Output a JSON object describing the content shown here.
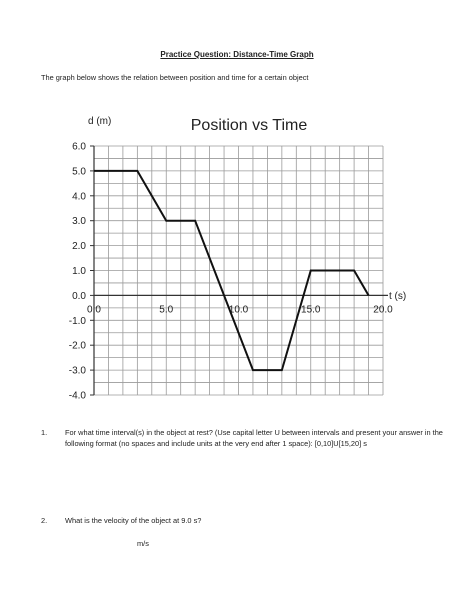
{
  "document": {
    "title": "Practice Question: Distance-Time Graph",
    "intro": "The graph below shows the relation between position and time for a certain object"
  },
  "chart_data": {
    "type": "line",
    "title": "Position vs Time",
    "xlabel": "t (s)",
    "ylabel": "d (m)",
    "xlim": [
      0,
      20
    ],
    "ylim": [
      -4,
      6
    ],
    "grid": true,
    "x_ticks": [
      "0.0",
      "5.0",
      "10.0",
      "15.0",
      "20.0"
    ],
    "y_ticks": [
      "6.0",
      "5.0",
      "4.0",
      "3.0",
      "2.0",
      "1.0",
      "0.0",
      "-1.0",
      "-2.0",
      "-3.0",
      "-4.0"
    ],
    "series": [
      {
        "x": [
          0,
          3,
          5,
          7,
          11,
          13,
          15,
          18,
          19
        ],
        "y": [
          5,
          5,
          3,
          3,
          -3,
          -3,
          1,
          1,
          0
        ]
      }
    ],
    "line_color": "#111111"
  },
  "questions": [
    {
      "number": "1.",
      "text": "For what time interval(s) in the object at rest? (Use capital letter U between intervals and present your answer in the following format (no spaces and include units at the very end after 1 space): [0,10]U[15,20] s"
    },
    {
      "number": "2.",
      "text": "What is the velocity of the object at 9.0 s?",
      "answer_unit": "m/s"
    }
  ]
}
